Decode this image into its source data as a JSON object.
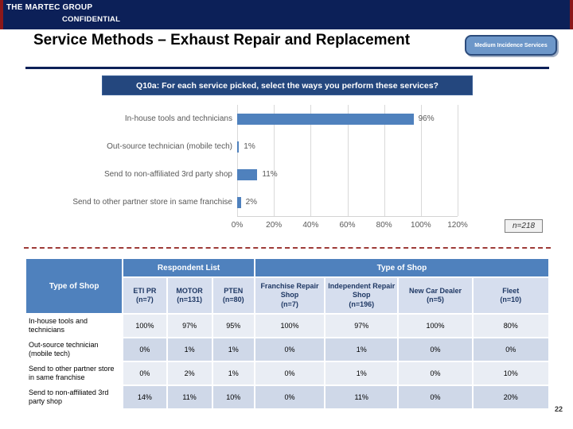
{
  "slide": {
    "org": "THE MARTEC GROUP",
    "confidential": "CONFIDENTIAL",
    "title": "Service Methods – Exhaust Repair and Replacement",
    "badge_label": "Medium Incidence Services",
    "question": "Q10a: For each service picked, select the ways you perform these services?",
    "page_number": "22"
  },
  "colors": {
    "navy": "#0c2058",
    "edge_red": "#8c181a",
    "bar_blue": "#4f81bd",
    "banner_blue": "#24477e",
    "badge_blue": "#6d97c9",
    "dashed_maroon": "#9e3b37",
    "table_header_blue": "#4f81bd",
    "table_subhead_bg": "#d6deee",
    "band_light": "#e9edf4",
    "band_dark": "#cfd8e8"
  },
  "chart_data": {
    "type": "bar",
    "orientation": "horizontal",
    "categories": [
      "In-house tools and technicians",
      "Out-source technician (mobile tech)",
      "Send to non-affiliated 3rd party shop",
      "Send to other partner store in same franchise"
    ],
    "values": [
      96,
      1,
      11,
      2
    ],
    "value_labels": [
      "96%",
      "1%",
      "11%",
      "2%"
    ],
    "x_ticks": [
      "0%",
      "20%",
      "40%",
      "60%",
      "80%",
      "100%",
      "120%"
    ],
    "xlim": [
      0,
      120
    ],
    "grid": true,
    "legend": "none",
    "sample_note": "n=218"
  },
  "table": {
    "band_headers": {
      "corner": "Type of Shop",
      "respondent_list": "Respondent List",
      "type_of_shop": "Type of Shop"
    },
    "columns": [
      "ETI PR\n(n=7)",
      "MOTOR\n(n=131)",
      "PTEN\n(n=80)",
      "Franchise Repair Shop\n(n=7)",
      "Independent Repair Shop\n(n=196)",
      "New Car Dealer\n(n=5)",
      "Fleet\n(n=10)"
    ],
    "rows": [
      {
        "label": "In-house tools and technicians",
        "values": [
          "100%",
          "97%",
          "95%",
          "100%",
          "97%",
          "100%",
          "80%"
        ]
      },
      {
        "label": "Out-source technician (mobile tech)",
        "values": [
          "0%",
          "1%",
          "1%",
          "0%",
          "1%",
          "0%",
          "0%"
        ]
      },
      {
        "label": "Send to other partner store in same franchise",
        "values": [
          "0%",
          "2%",
          "1%",
          "0%",
          "1%",
          "0%",
          "10%"
        ]
      },
      {
        "label": "Send to non-affiliated 3rd party shop",
        "values": [
          "14%",
          "11%",
          "10%",
          "0%",
          "11%",
          "0%",
          "20%"
        ]
      }
    ]
  }
}
